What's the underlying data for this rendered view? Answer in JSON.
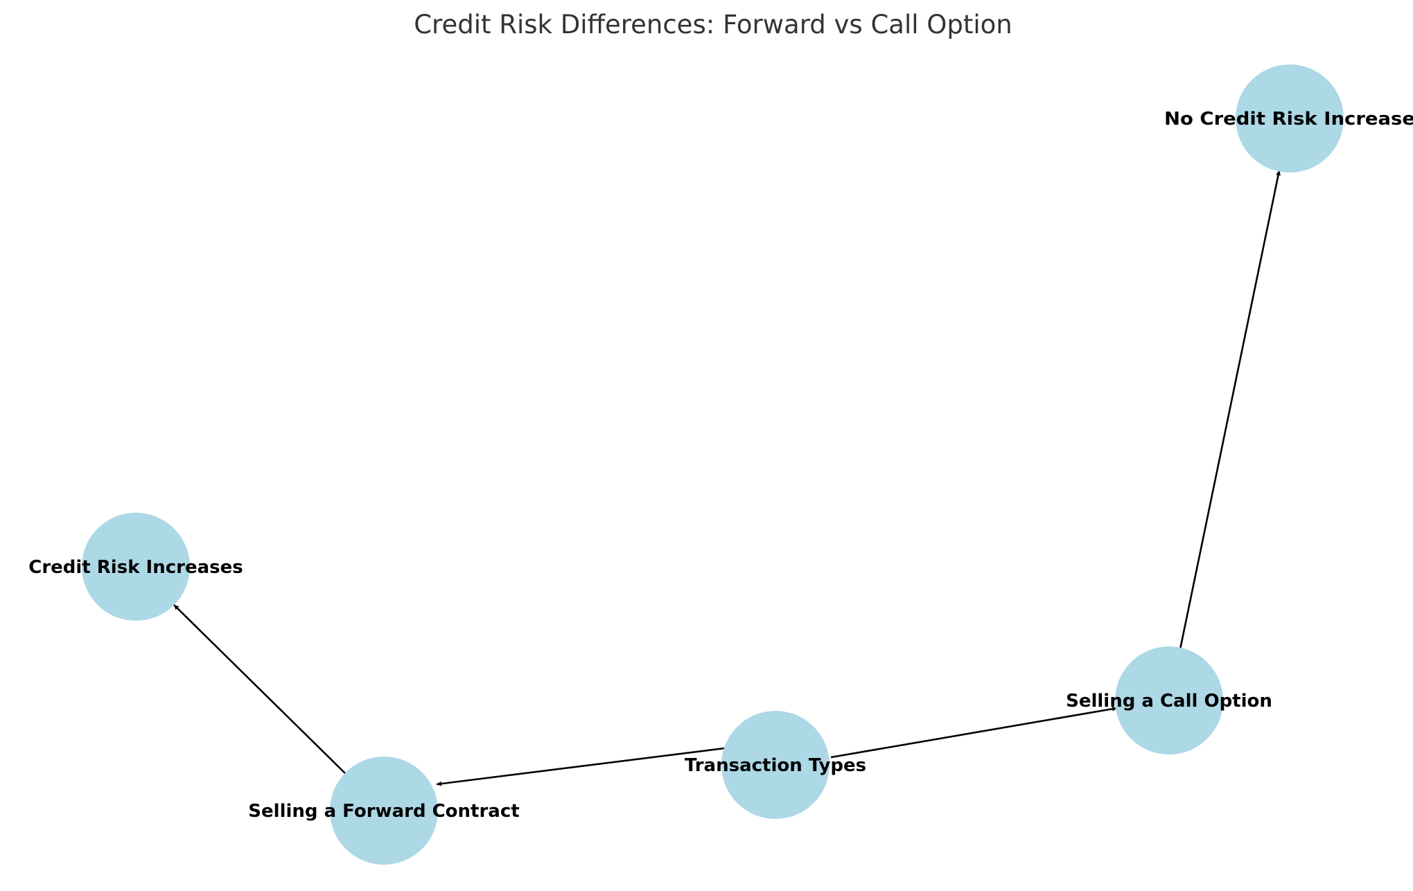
{
  "title": "Credit Risk Differences: Forward vs Call Option",
  "colors": {
    "node_fill": "#add8e6",
    "edge": "#000000",
    "label": "#000000",
    "title": "#333333",
    "background": "#ffffff"
  },
  "nodes": [
    {
      "id": "transaction-types",
      "label": "Transaction Types"
    },
    {
      "id": "selling-forward",
      "label": "Selling a Forward Contract"
    },
    {
      "id": "selling-call",
      "label": "Selling a Call Option"
    },
    {
      "id": "credit-risk-increases",
      "label": "Credit Risk Increases"
    },
    {
      "id": "no-credit-risk-increase",
      "label": "No Credit Risk Increase"
    }
  ],
  "edges": [
    {
      "from": "transaction-types",
      "to": "selling-forward"
    },
    {
      "from": "transaction-types",
      "to": "selling-call"
    },
    {
      "from": "selling-forward",
      "to": "credit-risk-increases"
    },
    {
      "from": "selling-call",
      "to": "no-credit-risk-increase"
    }
  ]
}
